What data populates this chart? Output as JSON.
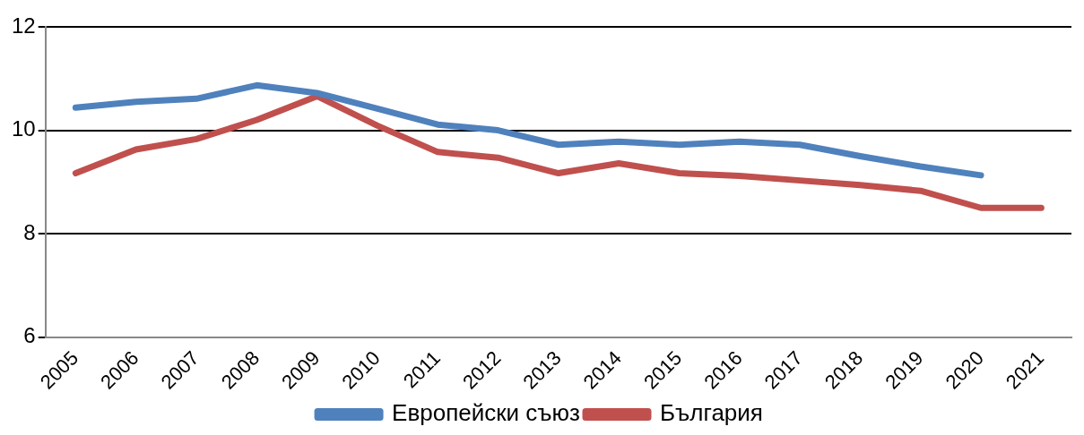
{
  "chart_data": {
    "type": "line",
    "categories": [
      "2005",
      "2006",
      "2007",
      "2008",
      "2009",
      "2010",
      "2011",
      "2012",
      "2013",
      "2014",
      "2015",
      "2016",
      "2017",
      "2018",
      "2019",
      "2020",
      "2021"
    ],
    "series": [
      {
        "name": "Европейски съюз",
        "color": "#4f81bd",
        "values": [
          10.44,
          10.55,
          10.61,
          10.87,
          10.72,
          10.42,
          10.11,
          10.0,
          9.72,
          9.78,
          9.72,
          9.78,
          9.72,
          9.5,
          9.3,
          9.13,
          null
        ]
      },
      {
        "name": "България",
        "color": "#c0504d",
        "values": [
          9.17,
          9.63,
          9.83,
          10.2,
          10.66,
          10.09,
          9.58,
          9.47,
          9.17,
          9.36,
          9.17,
          9.12,
          9.03,
          8.94,
          8.83,
          8.5,
          8.5
        ]
      }
    ],
    "ylim": [
      6,
      12
    ],
    "yticks": [
      6,
      8,
      10,
      12
    ],
    "grid": "y",
    "legend": "bottom",
    "marker": "none",
    "line_style": "solid"
  }
}
